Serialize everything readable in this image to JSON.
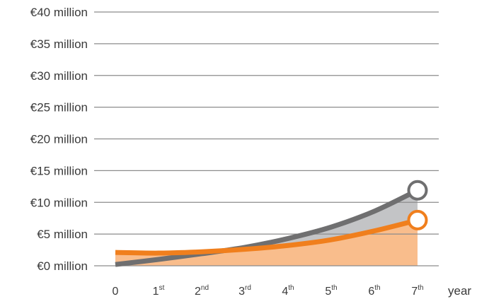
{
  "chart_data": {
    "type": "area",
    "xlabel": "year",
    "ylim": [
      0,
      40
    ],
    "grid": true,
    "y_ticks": [
      {
        "value": 40,
        "label": "€40 million"
      },
      {
        "value": 35,
        "label": "€35 million"
      },
      {
        "value": 30,
        "label": "€30 million"
      },
      {
        "value": 25,
        "label": "€25 million"
      },
      {
        "value": 20,
        "label": "€20 million"
      },
      {
        "value": 15,
        "label": "€15 million"
      },
      {
        "value": 10,
        "label": "€10 million"
      },
      {
        "value": 5,
        "label": "€5 million"
      },
      {
        "value": 0,
        "label": "€0 million"
      }
    ],
    "x_ticks": [
      {
        "value": 0,
        "num": "0",
        "sup": ""
      },
      {
        "value": 1,
        "num": "1",
        "sup": "st"
      },
      {
        "value": 2,
        "num": "2",
        "sup": "nd"
      },
      {
        "value": 3,
        "num": "3",
        "sup": "rd"
      },
      {
        "value": 4,
        "num": "4",
        "sup": "th"
      },
      {
        "value": 5,
        "num": "5",
        "sup": "th"
      },
      {
        "value": 6,
        "num": "6",
        "sup": "th"
      },
      {
        "value": 7,
        "num": "7",
        "sup": "th"
      }
    ],
    "series": [
      {
        "color": "#6f6f70",
        "fill": "#c3c4c6",
        "x": [
          0,
          1,
          2,
          3,
          4,
          5,
          6,
          7
        ],
        "values": [
          0.2,
          1.0,
          1.9,
          2.9,
          4.3,
          6.1,
          8.6,
          11.9
        ]
      },
      {
        "color": "#f07f1d",
        "fill": "#f9bd8c",
        "x": [
          0,
          1,
          2,
          3,
          4,
          5,
          6,
          7
        ],
        "values": [
          2.1,
          2.0,
          2.2,
          2.6,
          3.2,
          4.1,
          5.5,
          7.2
        ]
      }
    ]
  }
}
